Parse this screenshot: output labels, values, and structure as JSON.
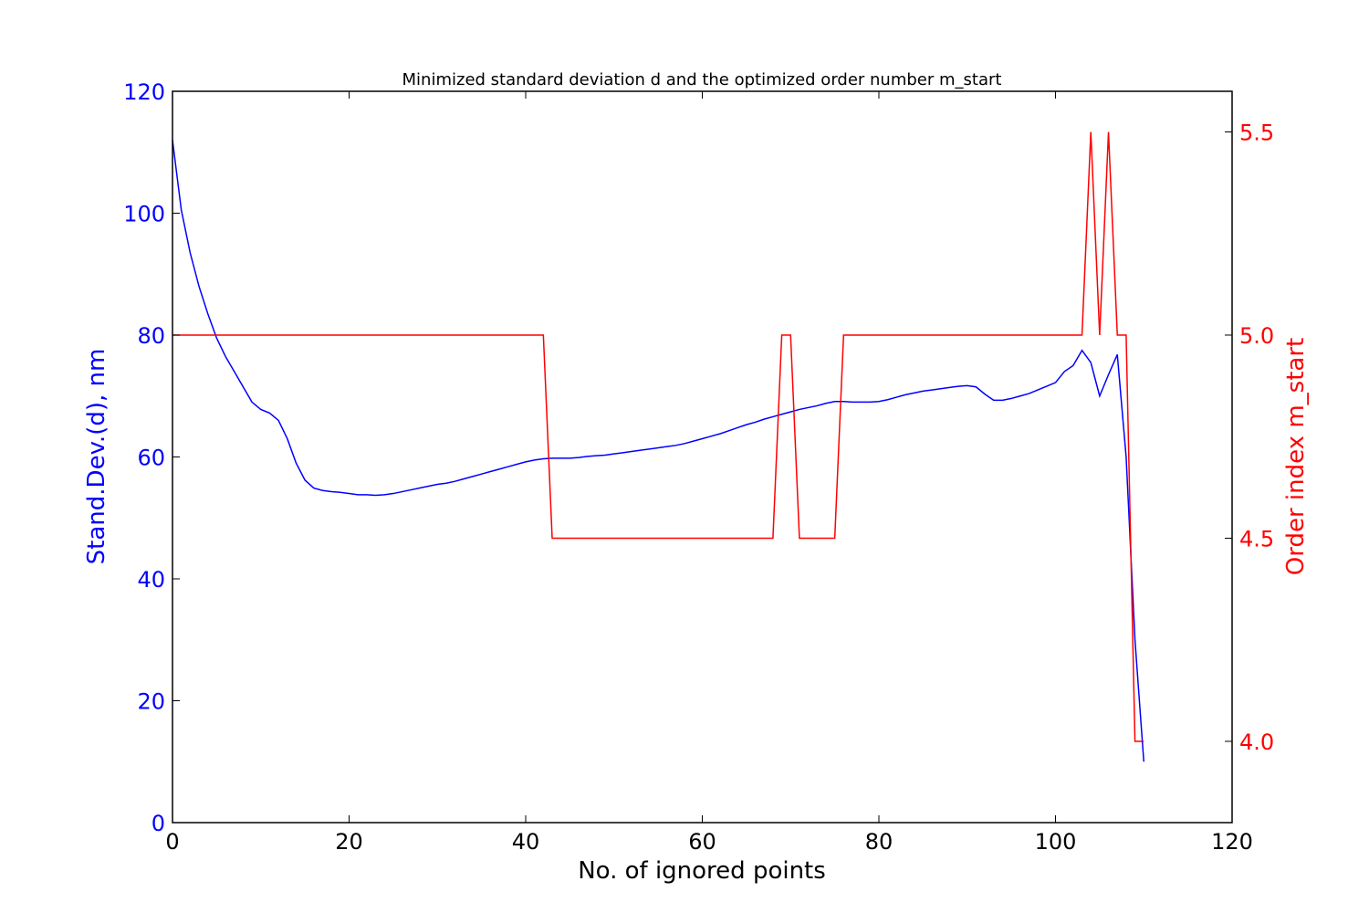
{
  "chart_data": {
    "type": "line",
    "title": "Minimized standard deviation d and the optimized order number m_start",
    "xlabel": "No. of ignored points",
    "ylabel_left": "Stand.Dev.(d), nm",
    "ylabel_right": "Order index m_start",
    "xlim": [
      0,
      120
    ],
    "ylim_left": [
      0,
      120
    ],
    "ylim_right": [
      3.8,
      5.6
    ],
    "x_ticks": [
      "0",
      "20",
      "40",
      "60",
      "80",
      "100",
      "120"
    ],
    "y_left_ticks": [
      "0",
      "20",
      "40",
      "60",
      "80",
      "100",
      "120"
    ],
    "y_right_ticks": [
      "4.0",
      "4.5",
      "5.0",
      "5.5"
    ],
    "grid": false,
    "legend": "none",
    "colors": {
      "left_axis": "#0000ff",
      "right_axis": "#ff0000",
      "frame": "#000000"
    },
    "series": [
      {
        "axis": "left",
        "color": "#0000ff",
        "x": [
          0,
          1,
          2,
          3,
          4,
          5,
          6,
          7,
          8,
          9,
          10,
          11,
          12,
          13,
          14,
          15,
          16,
          17,
          18,
          19,
          20,
          21,
          22,
          23,
          24,
          25,
          26,
          27,
          28,
          29,
          30,
          31,
          32,
          33,
          34,
          35,
          36,
          37,
          38,
          39,
          40,
          41,
          42,
          43,
          44,
          45,
          46,
          47,
          48,
          49,
          50,
          51,
          52,
          53,
          54,
          55,
          56,
          57,
          58,
          59,
          60,
          61,
          62,
          63,
          64,
          65,
          66,
          67,
          68,
          69,
          70,
          71,
          72,
          73,
          74,
          75,
          76,
          77,
          78,
          79,
          80,
          81,
          82,
          83,
          84,
          85,
          86,
          87,
          88,
          89,
          90,
          91,
          92,
          93,
          94,
          95,
          96,
          97,
          98,
          99,
          100,
          101,
          102,
          103,
          104,
          105,
          106,
          107,
          108,
          109,
          110
        ],
        "values": [
          112,
          100.5,
          93.5,
          88,
          83.5,
          79.5,
          76.5,
          74,
          71.5,
          69,
          67.8,
          67.2,
          66,
          63,
          59,
          56.2,
          54.9,
          54.5,
          54.3,
          54.2,
          54,
          53.8,
          53.8,
          53.7,
          53.8,
          54,
          54.3,
          54.6,
          54.9,
          55.2,
          55.5,
          55.7,
          56,
          56.4,
          56.8,
          57.2,
          57.6,
          58,
          58.4,
          58.8,
          59.2,
          59.5,
          59.7,
          59.8,
          59.8,
          59.8,
          59.9,
          60.1,
          60.2,
          60.3,
          60.5,
          60.7,
          60.9,
          61.1,
          61.3,
          61.5,
          61.7,
          61.9,
          62.2,
          62.6,
          63,
          63.4,
          63.8,
          64.3,
          64.8,
          65.3,
          65.7,
          66.2,
          66.6,
          67,
          67.4,
          67.8,
          68.1,
          68.4,
          68.8,
          69.1,
          69.1,
          69,
          69,
          69,
          69.1,
          69.4,
          69.8,
          70.2,
          70.5,
          70.8,
          71,
          71.2,
          71.4,
          71.6,
          71.7,
          71.5,
          70.3,
          69.3,
          69.3,
          69.6,
          70,
          70.4,
          71,
          71.6,
          72.2,
          74,
          75,
          77.5,
          75.5,
          70,
          73.5,
          76.8,
          60,
          30,
          10
        ]
      },
      {
        "axis": "right",
        "color": "#ff0000",
        "x": [
          0,
          42,
          43,
          68,
          69,
          70,
          71,
          75,
          76,
          103,
          104,
          105,
          106,
          107,
          108,
          109,
          110
        ],
        "values": [
          5.0,
          5.0,
          4.5,
          4.5,
          5.0,
          5.0,
          4.5,
          4.5,
          5.0,
          5.0,
          5.5,
          5.0,
          5.5,
          5.0,
          5.0,
          4.0,
          4.0
        ]
      }
    ]
  }
}
